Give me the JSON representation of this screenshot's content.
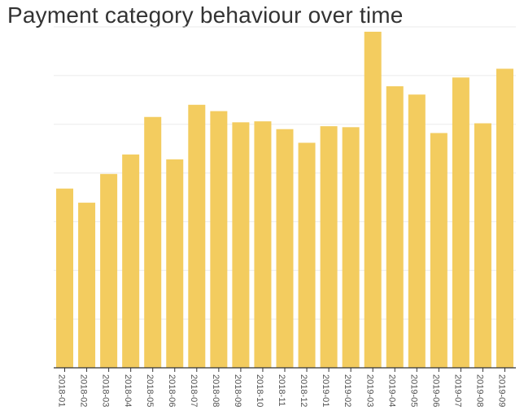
{
  "chart_data": {
    "type": "bar",
    "title": "Payment category behaviour over time",
    "xlabel": "",
    "ylabel": "",
    "categories": [
      "2018-01",
      "2018-02",
      "2018-03",
      "2018-04",
      "2018-05",
      "2018-06",
      "2018-07",
      "2018-08",
      "2018-09",
      "2018-10",
      "2018-11",
      "2018-12",
      "2019-01",
      "2019-02",
      "2019-03",
      "2019-04",
      "2019-05",
      "2019-06",
      "2019-07",
      "2019-08",
      "2019-09"
    ],
    "values": [
      3.68,
      3.39,
      3.98,
      4.38,
      5.15,
      4.28,
      5.4,
      5.27,
      5.04,
      5.06,
      4.9,
      4.62,
      4.96,
      4.94,
      6.9,
      5.78,
      5.61,
      4.82,
      5.96,
      5.02,
      6.14
    ],
    "ylim": [
      0,
      7
    ],
    "grid": true,
    "legend": "none",
    "bar_color": "#f3cc5f",
    "grid_color": "#ebebeb",
    "axis_color": "#333333"
  }
}
